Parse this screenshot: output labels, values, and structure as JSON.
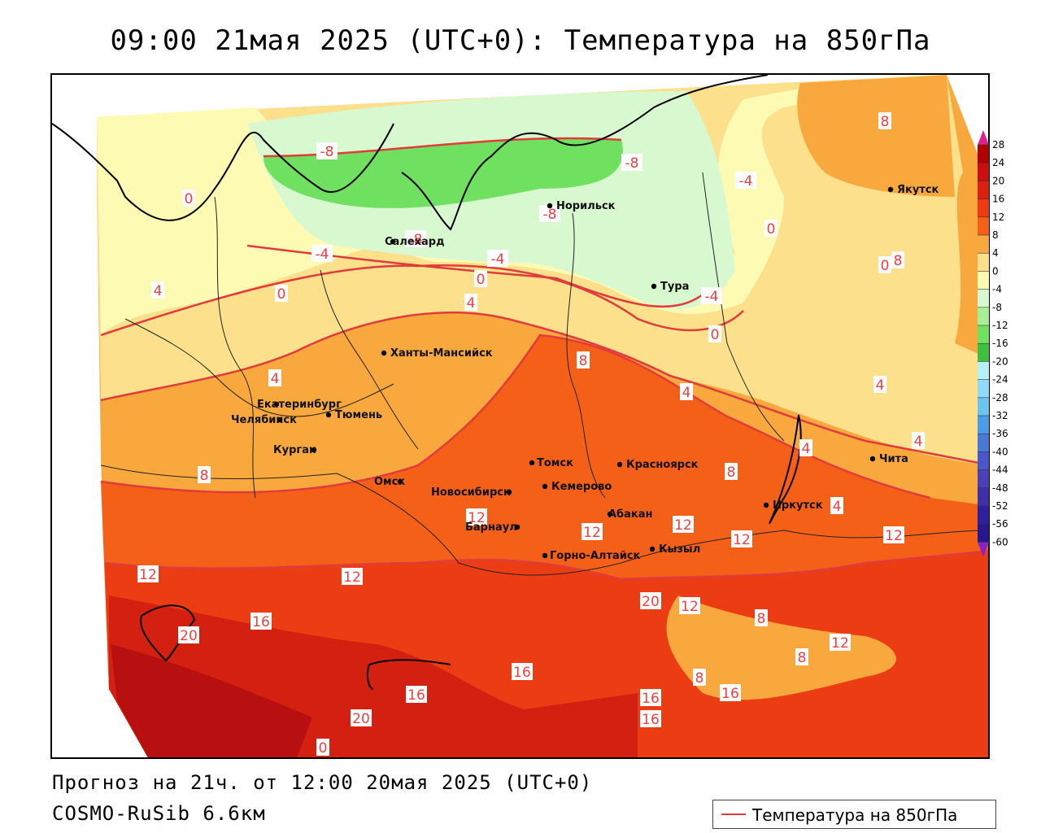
{
  "header": {
    "title": "09:00 21мая 2025 (UTC+0): Температура на 850гПа"
  },
  "footer": {
    "forecast": "Прогноз на 21ч. от 12:00 20мая 2025 (UTC+0)",
    "model": "COSMO-RuSib 6.6км"
  },
  "legend": {
    "label": "Температура на 850гПа",
    "line_color": "#e03c3c"
  },
  "colorbar": {
    "levels": [
      28,
      24,
      20,
      16,
      12,
      8,
      4,
      0,
      -4,
      -8,
      -12,
      -16,
      -20,
      -24,
      -28,
      -32,
      -36,
      -40,
      -44,
      -48,
      -52,
      -56,
      -60
    ],
    "colors": [
      "#b00000",
      "#c81010",
      "#dc2010",
      "#ec3c14",
      "#f46018",
      "#f8a83c",
      "#fce08c",
      "#fdfab4",
      "#d8f8d0",
      "#a8f098",
      "#70e060",
      "#40c040",
      "#b8f0f8",
      "#90dcf8",
      "#6cc4f0",
      "#4c9ce8",
      "#4878d8",
      "#4858c8",
      "#4c40b8",
      "#4030a8",
      "#3020a0",
      "#281890"
    ]
  },
  "cities": [
    {
      "name": "Норильск"
    },
    {
      "name": "Салехард"
    },
    {
      "name": "Якутск"
    },
    {
      "name": "Тура"
    },
    {
      "name": "Ханты-Мансийск"
    },
    {
      "name": "Екатеринбург"
    },
    {
      "name": "Тюмень"
    },
    {
      "name": "Челябинск"
    },
    {
      "name": "Курган"
    },
    {
      "name": "Омск"
    },
    {
      "name": "Томск"
    },
    {
      "name": "Красноярск"
    },
    {
      "name": "Новосибирск"
    },
    {
      "name": "Кемерово"
    },
    {
      "name": "Абакан"
    },
    {
      "name": "Барнаул"
    },
    {
      "name": "Горно-Алтайск"
    },
    {
      "name": "Кызыл"
    },
    {
      "name": "Иркутск"
    },
    {
      "name": "Чита"
    }
  ],
  "isotherm_labels": [
    "-8",
    "-8",
    "-8",
    "-8",
    "-4",
    "-4",
    "-4",
    "-4",
    "0",
    "0",
    "0",
    "0",
    "0",
    "0",
    "4",
    "4",
    "4",
    "4",
    "4",
    "4",
    "4",
    "4",
    "8",
    "8",
    "8",
    "8",
    "8",
    "8",
    "8",
    "12",
    "12",
    "12",
    "12",
    "12",
    "12",
    "12",
    "12",
    "12",
    "16",
    "16",
    "16",
    "16",
    "16",
    "16",
    "20",
    "20",
    "20",
    "0",
    "8"
  ]
}
